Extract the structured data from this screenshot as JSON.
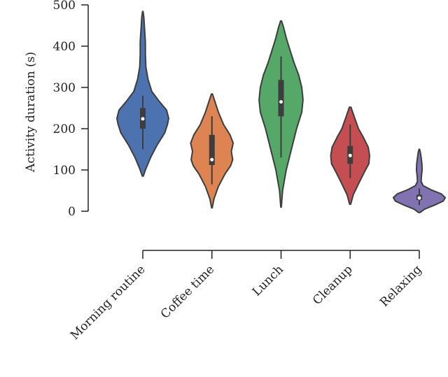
{
  "chart_data": {
    "type": "violin",
    "title": "",
    "xlabel": "",
    "ylabel": "Activity duration (s)",
    "ylim": [
      0,
      500
    ],
    "yticks": [
      "0",
      "100",
      "200",
      "300",
      "400",
      "500"
    ],
    "grid": false,
    "categories": [
      "Morning routine",
      "Coffee time",
      "Lunch",
      "Cleanup",
      "Relaxing"
    ],
    "series": [
      {
        "category": "Morning routine",
        "color": "#4C72B0",
        "median": 224,
        "q1": 200,
        "q3": 250,
        "whisker_low": 150,
        "whisker_high": 280,
        "min": 85,
        "max": 484,
        "density": [
          [
            85,
            0.02
          ],
          [
            100,
            0.1
          ],
          [
            130,
            0.3
          ],
          [
            160,
            0.55
          ],
          [
            190,
            0.85
          ],
          [
            210,
            0.95
          ],
          [
            225,
            1.0
          ],
          [
            245,
            0.92
          ],
          [
            265,
            0.65
          ],
          [
            290,
            0.35
          ],
          [
            320,
            0.2
          ],
          [
            350,
            0.12
          ],
          [
            380,
            0.1
          ],
          [
            410,
            0.1
          ],
          [
            440,
            0.07
          ],
          [
            470,
            0.04
          ],
          [
            484,
            0.01
          ]
        ]
      },
      {
        "category": "Coffee time",
        "color": "#DD8452",
        "median": 125,
        "q1": 112,
        "q3": 185,
        "whisker_low": 65,
        "whisker_high": 230,
        "min": 8,
        "max": 284,
        "density": [
          [
            8,
            0.01
          ],
          [
            30,
            0.08
          ],
          [
            60,
            0.25
          ],
          [
            90,
            0.5
          ],
          [
            110,
            0.72
          ],
          [
            125,
            0.8
          ],
          [
            145,
            0.75
          ],
          [
            165,
            0.82
          ],
          [
            185,
            0.7
          ],
          [
            210,
            0.45
          ],
          [
            240,
            0.25
          ],
          [
            265,
            0.12
          ],
          [
            284,
            0.02
          ]
        ]
      },
      {
        "category": "Lunch",
        "color": "#55A868",
        "median": 265,
        "q1": 230,
        "q3": 318,
        "whisker_low": 130,
        "whisker_high": 375,
        "min": 10,
        "max": 461,
        "density": [
          [
            10,
            0.01
          ],
          [
            50,
            0.06
          ],
          [
            100,
            0.2
          ],
          [
            150,
            0.4
          ],
          [
            200,
            0.6
          ],
          [
            240,
            0.8
          ],
          [
            270,
            0.85
          ],
          [
            300,
            0.8
          ],
          [
            330,
            0.68
          ],
          [
            360,
            0.5
          ],
          [
            390,
            0.35
          ],
          [
            420,
            0.2
          ],
          [
            445,
            0.1
          ],
          [
            461,
            0.02
          ]
        ]
      },
      {
        "category": "Cleanup",
        "color": "#C44E52",
        "median": 135,
        "q1": 115,
        "q3": 158,
        "whisker_low": 80,
        "whisker_high": 210,
        "min": 17,
        "max": 252,
        "density": [
          [
            17,
            0.02
          ],
          [
            40,
            0.12
          ],
          [
            70,
            0.35
          ],
          [
            95,
            0.55
          ],
          [
            115,
            0.72
          ],
          [
            135,
            0.75
          ],
          [
            155,
            0.7
          ],
          [
            180,
            0.5
          ],
          [
            200,
            0.32
          ],
          [
            225,
            0.18
          ],
          [
            252,
            0.03
          ]
        ]
      },
      {
        "category": "Relaxing",
        "color": "#8172B2",
        "median": 32,
        "q1": 27,
        "q3": 40,
        "whisker_low": 15,
        "whisker_high": 55,
        "min": -3,
        "max": 150,
        "density": [
          [
            -3,
            0.03
          ],
          [
            5,
            0.2
          ],
          [
            15,
            0.6
          ],
          [
            25,
            0.93
          ],
          [
            33,
            1.0
          ],
          [
            42,
            0.85
          ],
          [
            52,
            0.45
          ],
          [
            62,
            0.15
          ],
          [
            72,
            0.07
          ],
          [
            85,
            0.08
          ],
          [
            100,
            0.11
          ],
          [
            115,
            0.1
          ],
          [
            130,
            0.07
          ],
          [
            143,
            0.04
          ],
          [
            150,
            0.01
          ]
        ]
      }
    ]
  }
}
